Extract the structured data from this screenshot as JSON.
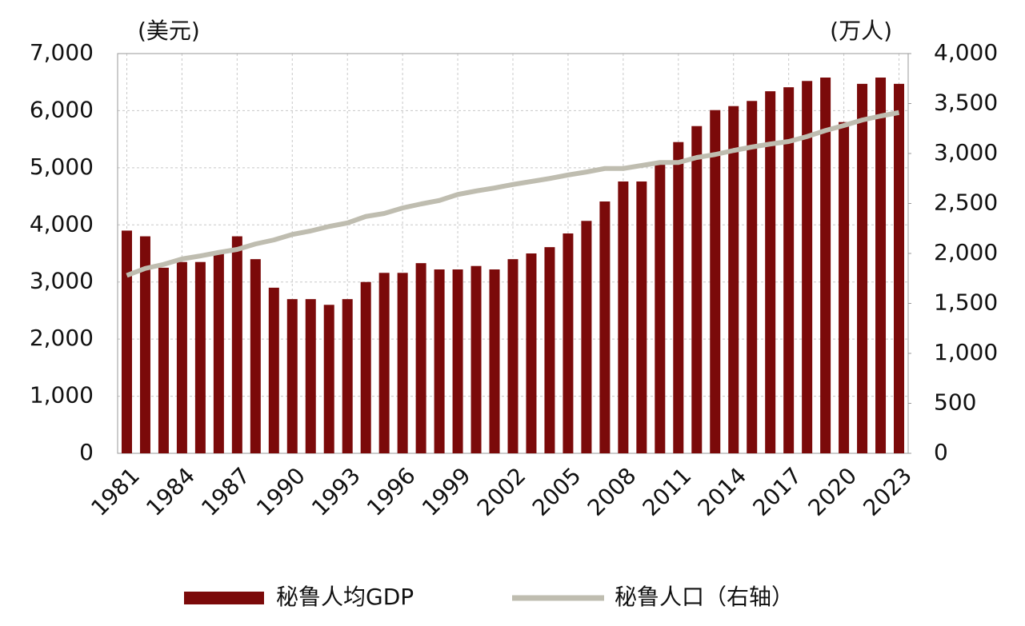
{
  "chart_data": {
    "type": "bar_line",
    "y_unit_label": "(美元)",
    "y2_unit_label": "(万人)",
    "categories": [
      "1981",
      null,
      null,
      "1984",
      null,
      null,
      "1987",
      null,
      null,
      "1990",
      null,
      null,
      "1993",
      null,
      null,
      "1996",
      null,
      null,
      "1999",
      null,
      null,
      "2002",
      null,
      null,
      "2005",
      null,
      null,
      "2008",
      null,
      null,
      "2011",
      null,
      null,
      "2014",
      null,
      null,
      "2017",
      null,
      null,
      "2020",
      null,
      null,
      "2023"
    ],
    "series": [
      {
        "name": "秘鲁人均GDP",
        "type": "bar",
        "color": "#7b0a0a",
        "axis": "y",
        "values": [
          3900,
          3800,
          3250,
          3350,
          3350,
          3500,
          3800,
          3400,
          2900,
          2700,
          2700,
          2600,
          2700,
          3000,
          3160,
          3160,
          3330,
          3220,
          3220,
          3280,
          3220,
          3400,
          3500,
          3610,
          3850,
          4070,
          4410,
          4760,
          4760,
          5070,
          5450,
          5730,
          6010,
          6080,
          6170,
          6340,
          6410,
          6520,
          6580,
          5800,
          6470,
          6580,
          6470
        ]
      },
      {
        "name": "秘鲁人口（右轴）",
        "type": "line",
        "color": "#bfbdb0",
        "axis": "y2",
        "values": [
          1780,
          1850,
          1890,
          1945,
          1975,
          2010,
          2040,
          2095,
          2135,
          2190,
          2225,
          2270,
          2305,
          2370,
          2400,
          2455,
          2495,
          2530,
          2590,
          2625,
          2655,
          2690,
          2720,
          2750,
          2785,
          2815,
          2850,
          2850,
          2880,
          2910,
          2910,
          2960,
          2990,
          3030,
          3065,
          3095,
          3120,
          3170,
          3230,
          3280,
          3335,
          3375,
          3410
        ]
      }
    ],
    "ylim": [
      0,
      7000
    ],
    "yticks": [
      0,
      {
        "value": 1000,
        "label": "1,000"
      },
      {
        "value": 2000,
        "label": "2,000"
      },
      {
        "value": 3000,
        "label": "3,000"
      },
      {
        "value": 4000,
        "label": "4,000"
      },
      {
        "value": 5000,
        "label": "5,000"
      },
      {
        "value": 6000,
        "label": "6,000"
      },
      {
        "value": 7000,
        "label": "7,000"
      }
    ],
    "y2lim": [
      0,
      4000
    ],
    "y2ticks": [
      0,
      500,
      {
        "value": 1000,
        "label": "1,000"
      },
      {
        "value": 1500,
        "label": "1,500"
      },
      {
        "value": 2000,
        "label": "2,000"
      },
      {
        "value": 2500,
        "label": "2,500"
      },
      {
        "value": 3000,
        "label": "3,000"
      },
      {
        "value": 3500,
        "label": "3,500"
      },
      {
        "value": 4000,
        "label": "4,000"
      }
    ],
    "grid": true,
    "legend": "bottom"
  }
}
